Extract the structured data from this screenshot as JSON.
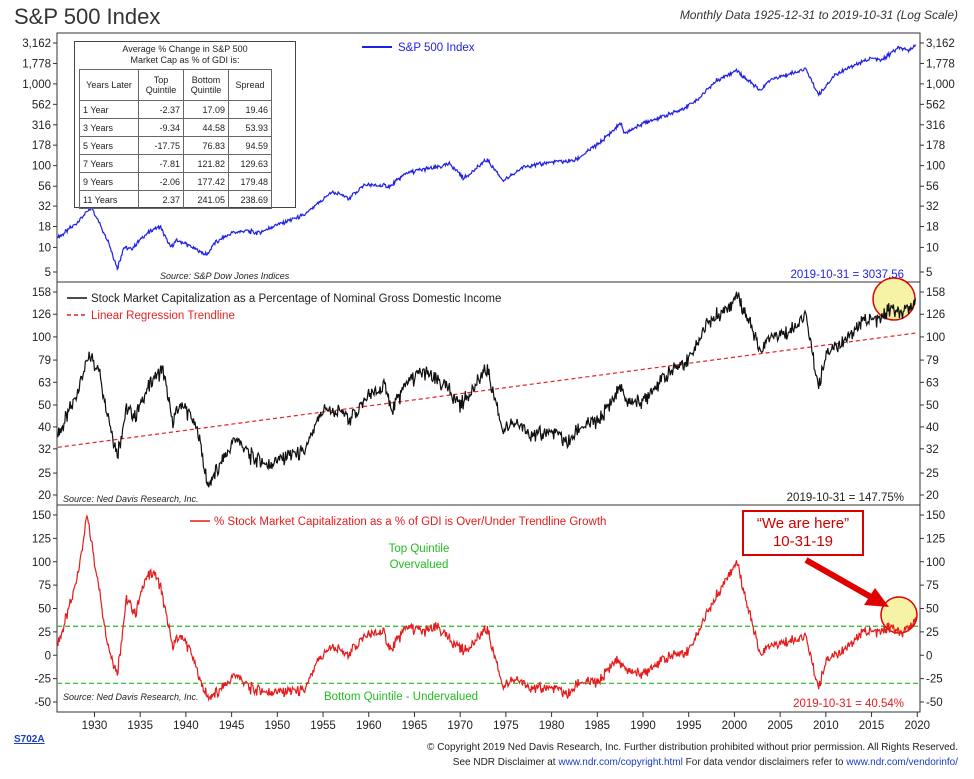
{
  "header": {
    "title": "S&P 500 Index",
    "subtitle": "Monthly Data 1925-12-31 to 2019-10-31 (Log Scale)"
  },
  "table": {
    "title_line1": "Average % Change in S&P 500",
    "title_line2": "Market Cap as % of GDI is:",
    "headers": [
      "Years Later",
      "Top Quintile",
      "Bottom Quintile",
      "Spread"
    ],
    "rows": [
      [
        "1 Year",
        "-2.37",
        "17.09",
        "19.46"
      ],
      [
        "3 Years",
        "-9.34",
        "44.58",
        "53.93"
      ],
      [
        "5 Years",
        "-17.75",
        "76.83",
        "94.59"
      ],
      [
        "7 Years",
        "-7.81",
        "121.82",
        "129.63"
      ],
      [
        "9 Years",
        "-2.06",
        "177.42",
        "179.48"
      ],
      [
        "11 Years",
        "2.37",
        "241.05",
        "238.69"
      ]
    ]
  },
  "callout": {
    "line1": "“We are here”",
    "line2": "10-31-19"
  },
  "footer": {
    "code": "S702A",
    "copyright": "© Copyright 2019 Ned Davis Research, Inc. Further distribution prohibited without prior permission. All Rights Reserved.",
    "disclaimer_prefix": "See NDR Disclaimer at",
    "disclaimer_link1": "www.ndr.com/copyright.html",
    "disclaimer_middle": "For data vendor disclaimers refer to",
    "disclaimer_link2": "www.ndr.com/vendorinfo/"
  },
  "colors": {
    "sp500": "#1f1fe6",
    "capgdi": "#111111",
    "trend": "#e52222",
    "deviation": "#e51b1b",
    "quintile": "#22bb22",
    "highlight": "#f7f3a6",
    "arrow": "#e00000"
  },
  "chart_data": [
    {
      "type": "line",
      "title": "S&P 500 Index",
      "scale": "log",
      "ylim": [
        5,
        3162
      ],
      "yticks": [
        "5",
        "10",
        "18",
        "32",
        "56",
        "100",
        "178",
        "316",
        "562",
        "1,000",
        "1,778",
        "3,162"
      ],
      "yticks_values": [
        5,
        10,
        18,
        32,
        56,
        100,
        178,
        316,
        562,
        1000,
        1778,
        3162
      ],
      "legend": "S&P 500 Index",
      "source": "Source: S&P Dow Jones Indices",
      "last_label": "2019-10-31 = 3037.56",
      "series": [
        {
          "name": "S&P 500 Index",
          "x": [
            1926,
            1927,
            1928,
            1929.7,
            1930.5,
            1931.5,
            1932.5,
            1933.2,
            1934,
            1935.2,
            1936.5,
            1937.2,
            1938.3,
            1939,
            1940,
            1942.3,
            1943,
            1945,
            1946.5,
            1948,
            1950,
            1953,
            1956,
            1957.8,
            1959.5,
            1962.4,
            1964,
            1966,
            1967.5,
            1968.9,
            1970.4,
            1972.9,
            1974.8,
            1977,
            1980,
            1982.5,
            1985,
            1987.6,
            1987.9,
            1990,
            1994,
            1996,
            1998,
            2000.2,
            2002.8,
            2004,
            2007.8,
            2009.2,
            2011,
            2013,
            2015,
            2016.1,
            2018,
            2018.9,
            2019.8
          ],
          "y": [
            13,
            16,
            20,
            31,
            20,
            12,
            5.5,
            10,
            9.5,
            13,
            17,
            18,
            10,
            12,
            11,
            8,
            11,
            15,
            16,
            15,
            19,
            25,
            48,
            40,
            58,
            56,
            80,
            90,
            95,
            105,
            70,
            118,
            65,
            98,
            110,
            115,
            180,
            330,
            245,
            330,
            470,
            650,
            1100,
            1480,
            820,
            1130,
            1520,
            740,
            1280,
            1680,
            2060,
            1940,
            2800,
            2500,
            3037.56
          ]
        }
      ]
    },
    {
      "type": "line",
      "title": "Stock Market Capitalization as a Percentage of Nominal Gross Domestic Income",
      "scale": "log",
      "ylim": [
        20,
        158
      ],
      "yticks": [
        "20",
        "25",
        "32",
        "40",
        "50",
        "63",
        "79",
        "100",
        "126",
        "158"
      ],
      "yticks_values": [
        20,
        25,
        32,
        40,
        50,
        63,
        79,
        100,
        126,
        158
      ],
      "legend": [
        "Stock Market Capitalization as a Percentage of Nominal Gross Domestic Income",
        "Linear Regression Trendline"
      ],
      "source": "Source: Ned Davis Research, Inc.",
      "last_label": "2019-10-31 = 147.75%",
      "series": [
        {
          "name": "Stock Market Capitalization as a Percentage of Nominal Gross Domestic Income",
          "x": [
            1926,
            1927.5,
            1929.5,
            1930.5,
            1931.5,
            1932.5,
            1933.5,
            1934.5,
            1936.5,
            1937.5,
            1938.5,
            1939.5,
            1940.5,
            1941.5,
            1942.3,
            1943.5,
            1945.5,
            1947,
            1949,
            1951,
            1953,
            1955,
            1957,
            1958,
            1960,
            1962,
            1962.5,
            1964,
            1966,
            1968.5,
            1970,
            1972.9,
            1974.8,
            1976,
            1978,
            1980,
            1982,
            1983,
            1985,
            1987.6,
            1988,
            1990,
            1992,
            1995,
            1997,
            1999.5,
            2000.3,
            2001.5,
            2002.8,
            2004,
            2006,
            2007.8,
            2009.2,
            2010,
            2012,
            2014,
            2016,
            2017,
            2018.5,
            2019.8
          ],
          "y": [
            36,
            50,
            84,
            70,
            45,
            30,
            48,
            45,
            67,
            72,
            42,
            50,
            45,
            36,
            22,
            26,
            36,
            30,
            27,
            30,
            31,
            48,
            46,
            44,
            55,
            60,
            46,
            62,
            70,
            60,
            50,
            72,
            38,
            42,
            37,
            38,
            34,
            40,
            42,
            60,
            52,
            52,
            65,
            80,
            115,
            140,
            155,
            120,
            85,
            100,
            105,
            125,
            60,
            85,
            95,
            118,
            120,
            133,
            125,
            147.75
          ]
        },
        {
          "name": "Linear Regression Trendline",
          "x": [
            1926,
            2019.8
          ],
          "y": [
            32.5,
            104
          ]
        }
      ]
    },
    {
      "type": "line",
      "title": "% Stock Market Capitalization as a % of GDI is Over/Under Trendline Growth",
      "ylim": [
        -50,
        150
      ],
      "yticks": [
        "-50",
        "-25",
        "0",
        "25",
        "50",
        "75",
        "100",
        "125",
        "150"
      ],
      "yticks_values": [
        -50,
        -25,
        0,
        25,
        50,
        75,
        100,
        125,
        150
      ],
      "legend": "% Stock Market Capitalization as a % of GDI is Over/Under Trendline Growth",
      "source": "Source: Ned Davis Research, Inc.",
      "last_label": "2019-10-31 = 40.54%",
      "annotations": {
        "top_line1": "Top Quintile",
        "top_line2": "Overvalued",
        "bottom": "Bottom Quintile - Undervalued"
      },
      "quintile_lines": [
        31,
        -30
      ],
      "xticks": [
        1930,
        1935,
        1940,
        1945,
        1950,
        1955,
        1960,
        1965,
        1970,
        1975,
        1980,
        1985,
        1990,
        1995,
        2000,
        2005,
        2010,
        2015,
        2020
      ],
      "series": [
        {
          "name": "% Stock Market Capitalization as a % of GDI is Over/Under Trendline Growth",
          "x": [
            1926,
            1927.5,
            1928.5,
            1929.2,
            1929.7,
            1930.5,
            1931.5,
            1932.5,
            1933.5,
            1934.5,
            1935.5,
            1936.5,
            1937.2,
            1938.5,
            1939.5,
            1940.5,
            1941.5,
            1942.3,
            1943.5,
            1945.5,
            1947,
            1949,
            1951,
            1953,
            1954.5,
            1956,
            1957.5,
            1959.5,
            1961.5,
            1962.5,
            1964,
            1966,
            1967.5,
            1969,
            1970.5,
            1972.9,
            1974.8,
            1976,
            1978,
            1980,
            1982,
            1983,
            1985,
            1987,
            1988,
            1990,
            1992,
            1995,
            1997,
            1999.5,
            2000.3,
            2001.5,
            2002.8,
            2004,
            2006,
            2007.8,
            2009.2,
            2010,
            2012,
            2014,
            2016,
            2017,
            2018.5,
            2019.8
          ],
          "y": [
            10,
            60,
            105,
            150,
            120,
            70,
            10,
            -20,
            60,
            45,
            80,
            90,
            75,
            10,
            20,
            5,
            -25,
            -45,
            -40,
            -20,
            -35,
            -40,
            -38,
            -38,
            -5,
            10,
            0,
            20,
            25,
            5,
            30,
            25,
            30,
            15,
            5,
            28,
            -35,
            -25,
            -35,
            -35,
            -42,
            -28,
            -30,
            -5,
            -15,
            -20,
            -5,
            5,
            45,
            90,
            100,
            50,
            0,
            10,
            15,
            20,
            -35,
            -5,
            5,
            25,
            25,
            30,
            22,
            40.54
          ]
        }
      ]
    }
  ]
}
